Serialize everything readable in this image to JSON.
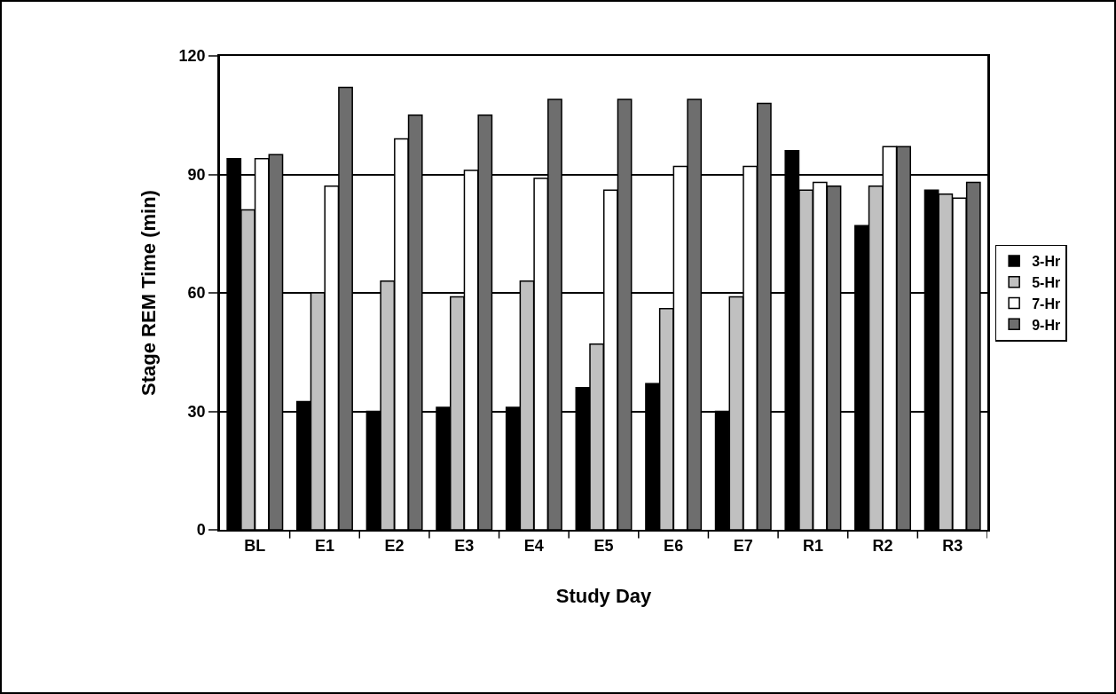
{
  "chart_data": {
    "type": "bar",
    "xlabel": "Study Day",
    "ylabel": "Stage REM Time (min)",
    "categories": [
      "BL",
      "E1",
      "E2",
      "E3",
      "E4",
      "E5",
      "E6",
      "E7",
      "R1",
      "R2",
      "R3"
    ],
    "series": [
      {
        "name": "3-Hr",
        "color": "#000000",
        "values": [
          94,
          32.5,
          30,
          31,
          31,
          36,
          37,
          30,
          96,
          77,
          86
        ]
      },
      {
        "name": "5-Hr",
        "color": "#c0c0c0",
        "values": [
          81,
          60,
          63,
          59,
          63,
          47,
          56,
          59,
          86,
          87,
          85
        ]
      },
      {
        "name": "7-Hr",
        "color": "#ffffff",
        "values": [
          94,
          87,
          99,
          91,
          89,
          86,
          92,
          92,
          88,
          97,
          84
        ]
      },
      {
        "name": "9-Hr",
        "color": "#6e6e6e",
        "values": [
          95,
          112,
          105,
          105,
          109,
          109,
          109,
          108,
          87,
          97,
          88
        ]
      }
    ],
    "ylim": [
      0,
      120
    ],
    "yticks": [
      0,
      30,
      60,
      90,
      120
    ],
    "grid": "y",
    "legend": "right"
  }
}
